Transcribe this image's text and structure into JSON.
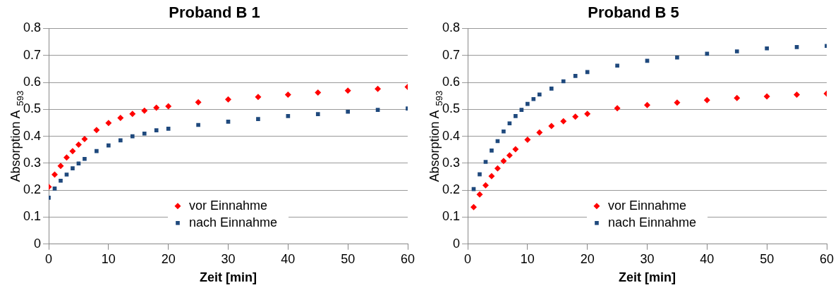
{
  "chart_data": [
    {
      "type": "scatter",
      "title": "Proband B 1",
      "xlabel": "Zeit [min]",
      "ylabel": "Absorption A $_{593}$",
      "xlim": [
        0,
        60
      ],
      "xticks": [
        0,
        10,
        20,
        30,
        40,
        50,
        60
      ],
      "ylim": [
        0,
        0.8
      ],
      "yticks": [
        0,
        0.1,
        0.2,
        0.3,
        0.4,
        0.5,
        0.6,
        0.7,
        0.8
      ],
      "grid": "y",
      "legend": "bottom",
      "x": [
        0,
        1,
        2,
        3,
        4,
        5,
        6,
        8,
        10,
        12,
        14,
        16,
        18,
        20,
        25,
        30,
        35,
        40,
        45,
        50,
        55,
        60
      ],
      "series": [
        {
          "name": "vor Einnahme",
          "color": "#ff0000",
          "marker": "diamond",
          "values": [
            0.212,
            0.258,
            0.29,
            0.321,
            0.345,
            0.369,
            0.39,
            0.423,
            0.449,
            0.468,
            0.483,
            0.495,
            0.506,
            0.511,
            0.526,
            0.537,
            0.546,
            0.554,
            0.562,
            0.569,
            0.576,
            0.583
          ]
        },
        {
          "name": "nach Einnahme",
          "color": "#1f497d",
          "marker": "square",
          "values": [
            0.172,
            0.206,
            0.235,
            0.258,
            0.281,
            0.299,
            0.316,
            0.345,
            0.366,
            0.385,
            0.4,
            0.41,
            0.422,
            0.428,
            0.442,
            0.454,
            0.464,
            0.475,
            0.482,
            0.491,
            0.498,
            0.503
          ]
        }
      ]
    },
    {
      "type": "scatter",
      "title": "Proband B 5",
      "xlabel": "Zeit [min]",
      "ylabel": "Absorption A $_{593}$",
      "xlim": [
        0,
        60
      ],
      "xticks": [
        0,
        10,
        20,
        30,
        40,
        50,
        60
      ],
      "ylim": [
        0,
        0.8
      ],
      "yticks": [
        0,
        0.1,
        0.2,
        0.3,
        0.4,
        0.5,
        0.6,
        0.7,
        0.8
      ],
      "grid": "y",
      "legend": "bottom",
      "series": [
        {
          "name": "vor Einnahme",
          "color": "#ff0000",
          "marker": "diamond",
          "x": [
            1,
            2,
            3,
            4,
            5,
            6,
            7,
            8,
            10,
            12,
            14,
            16,
            18,
            20,
            25,
            30,
            35,
            40,
            45,
            50,
            55,
            60
          ],
          "values": [
            0.137,
            0.184,
            0.218,
            0.252,
            0.281,
            0.308,
            0.329,
            0.352,
            0.387,
            0.414,
            0.438,
            0.456,
            0.473,
            0.483,
            0.504,
            0.516,
            0.525,
            0.534,
            0.542,
            0.548,
            0.554,
            0.558
          ]
        },
        {
          "name": "nach Einnahme",
          "color": "#1f497d",
          "marker": "square",
          "x": [
            1,
            2,
            3,
            4,
            5,
            6,
            7,
            8,
            9,
            10,
            11,
            12,
            14,
            16,
            18,
            20,
            25,
            30,
            35,
            40,
            45,
            50,
            55,
            60
          ],
          "values": [
            0.204,
            0.259,
            0.305,
            0.347,
            0.382,
            0.418,
            0.448,
            0.475,
            0.498,
            0.52,
            0.538,
            0.555,
            0.577,
            0.604,
            0.624,
            0.638,
            0.662,
            0.68,
            0.692,
            0.706,
            0.715,
            0.726,
            0.731,
            0.735
          ]
        }
      ]
    }
  ]
}
